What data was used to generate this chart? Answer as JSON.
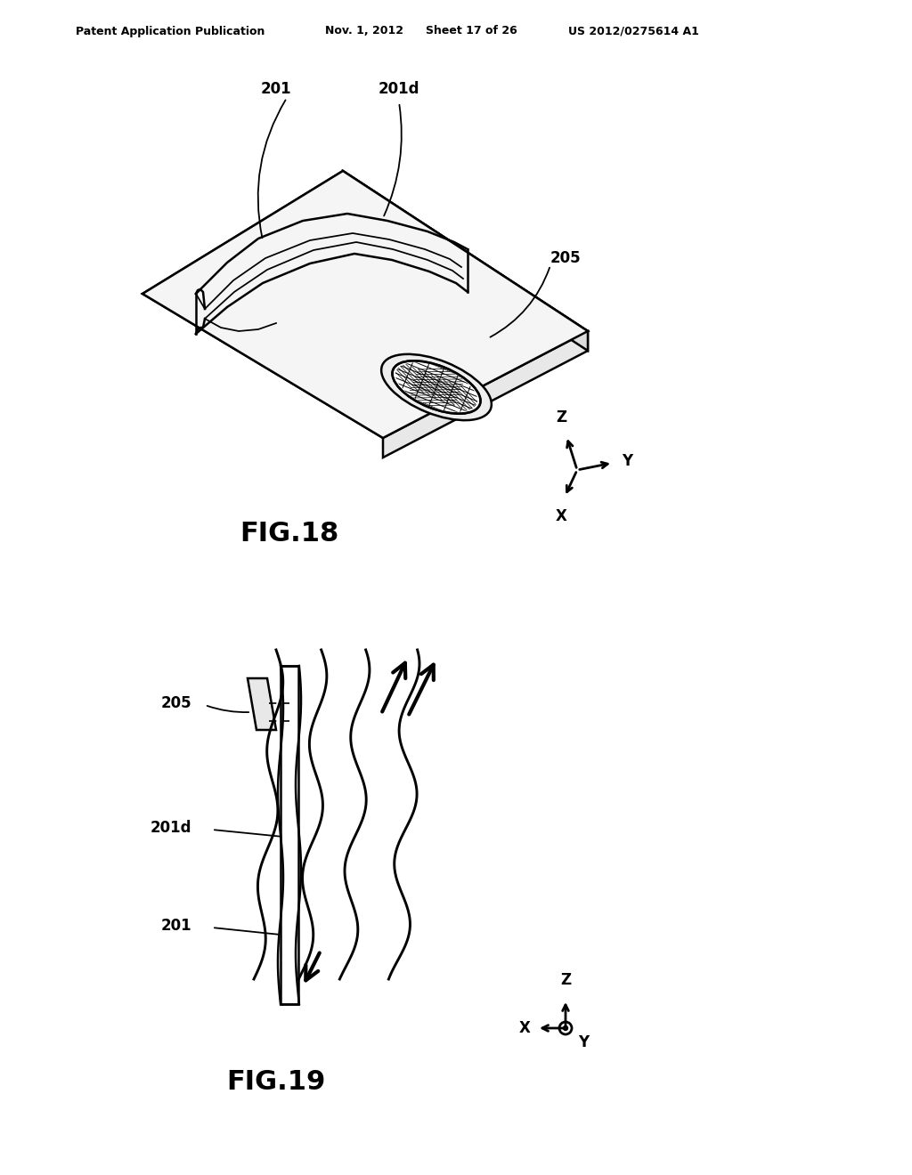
{
  "bg_color": "#ffffff",
  "line_color": "#000000",
  "header_text": "Patent Application Publication",
  "header_date": "Nov. 1, 2012",
  "header_sheet": "Sheet 17 of 26",
  "header_patent": "US 2012/0275614 A1",
  "fig18_label": "FIG.18",
  "fig19_label": "FIG.19",
  "label_201": "201",
  "label_201d": "201d",
  "label_205": "205",
  "label_201d_2": "201d",
  "label_201_2": "201",
  "label_205_2": "205"
}
